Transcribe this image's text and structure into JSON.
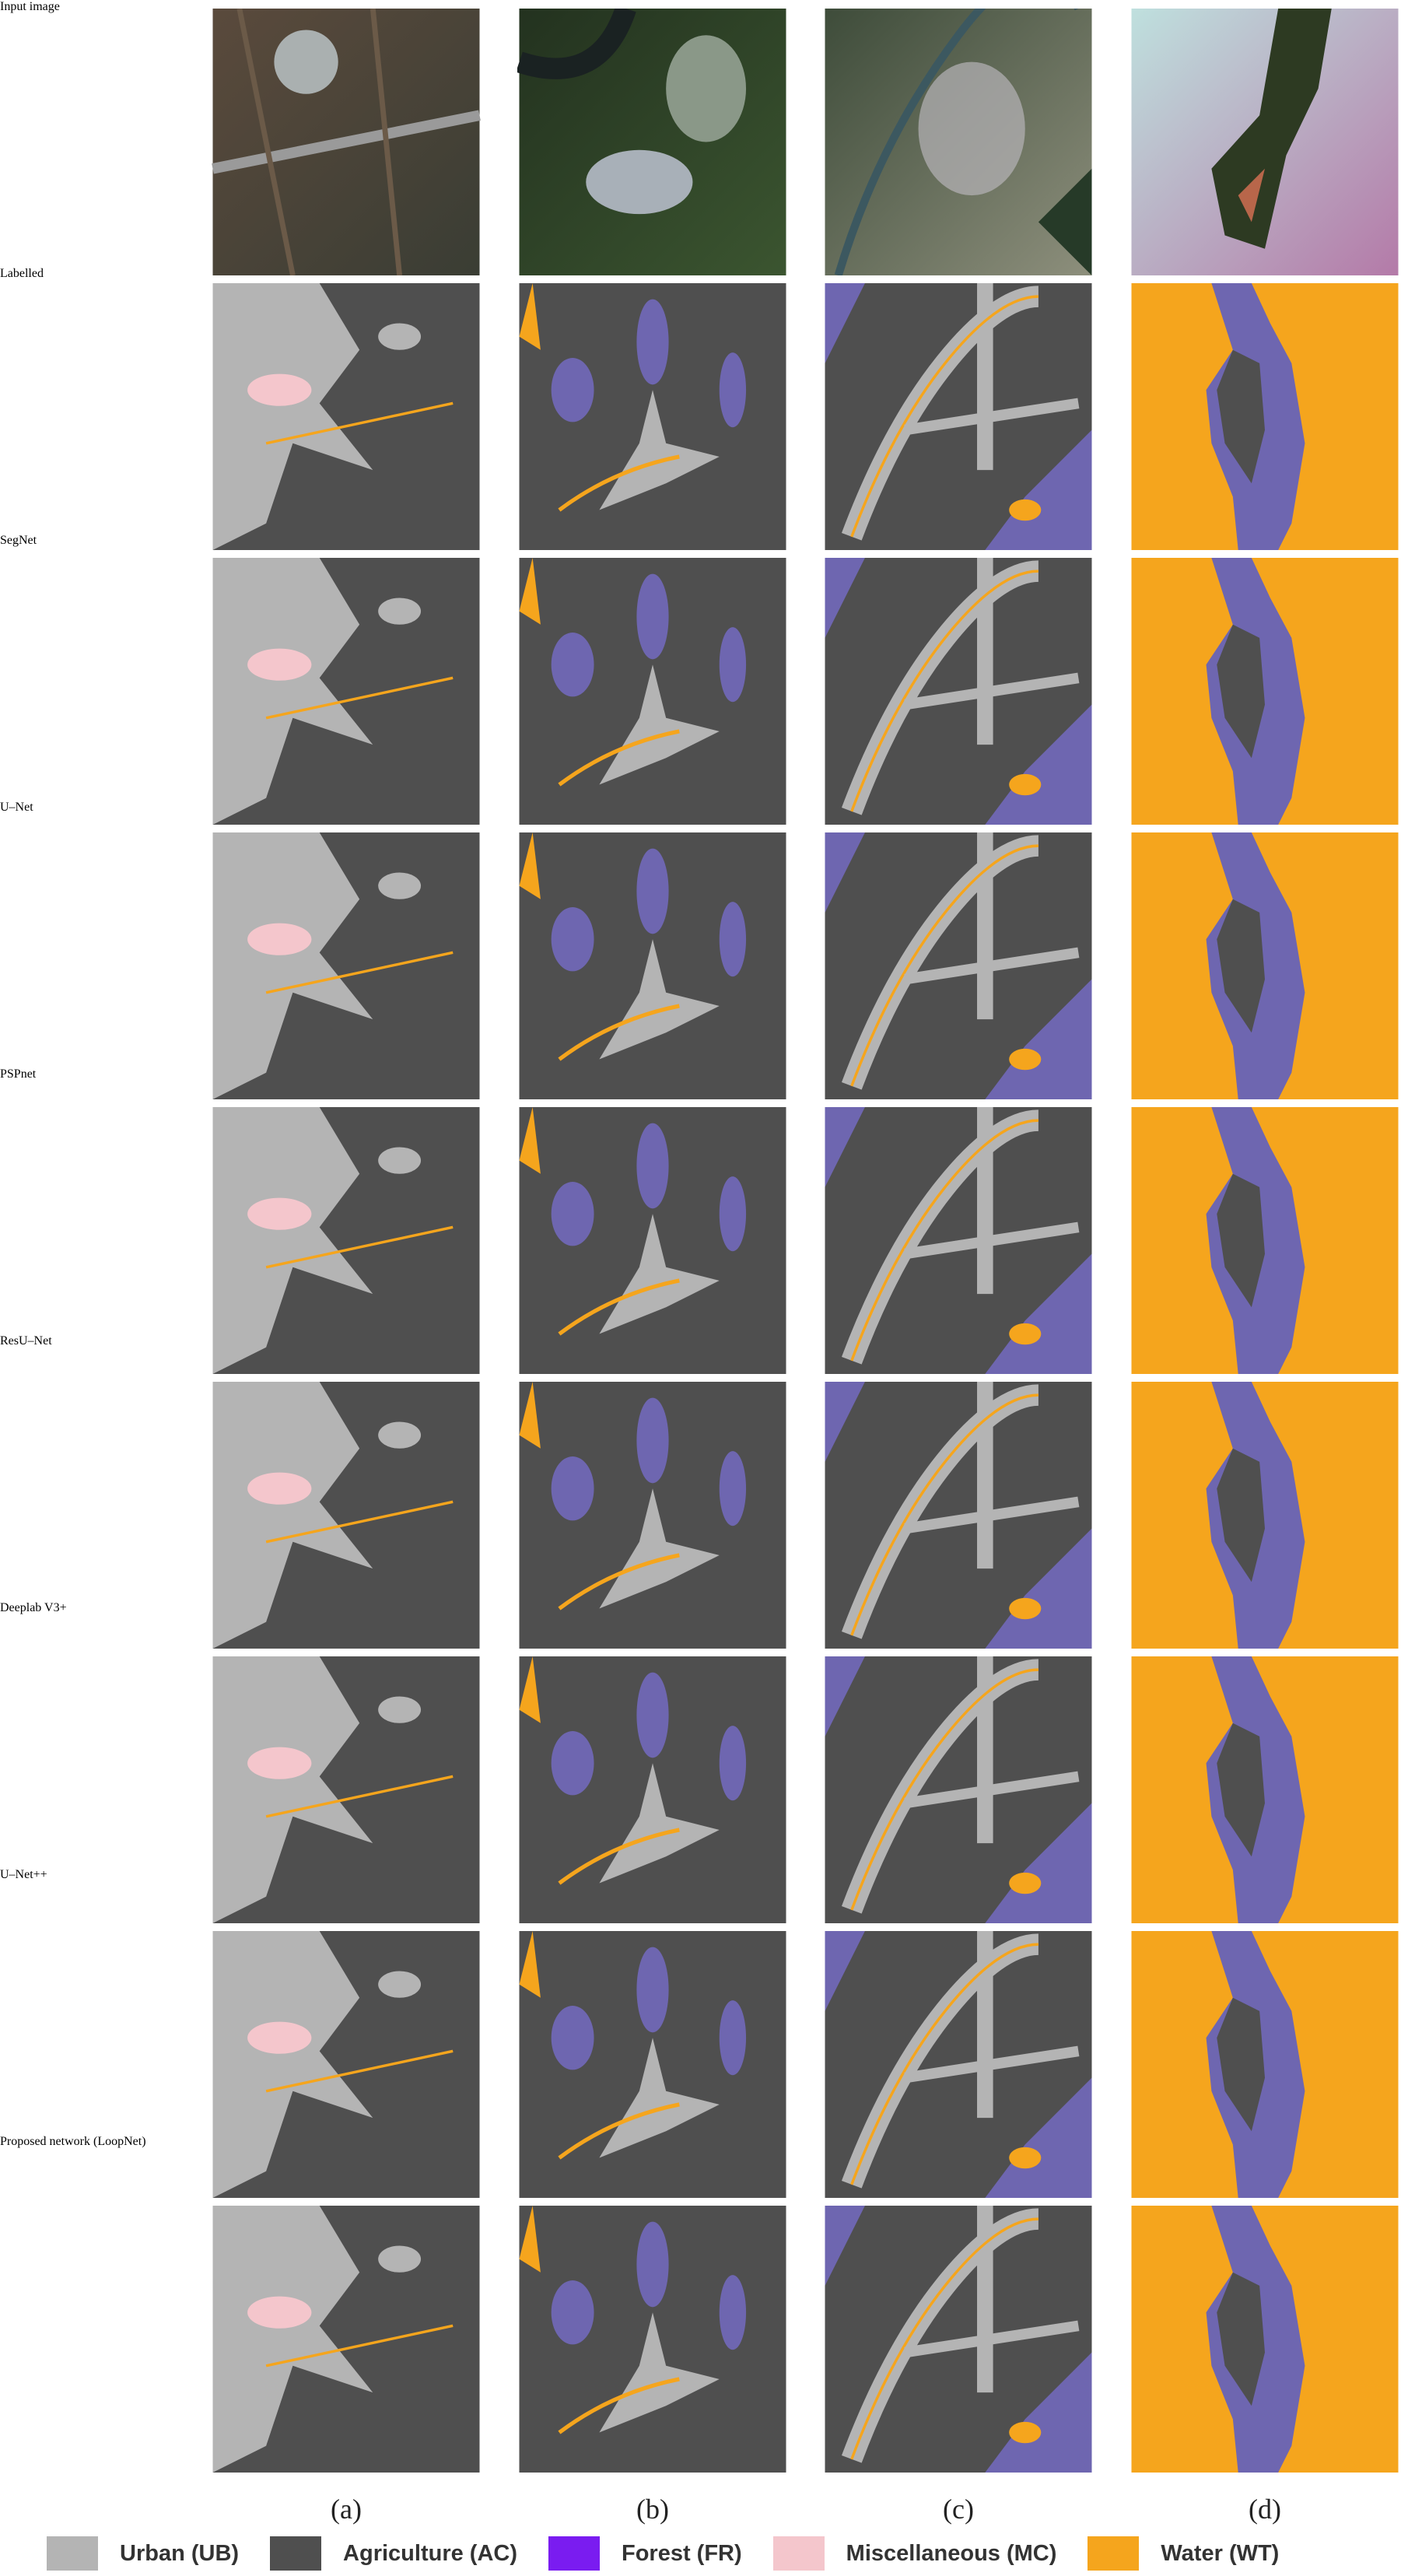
{
  "figure": {
    "rows": [
      "Input image",
      "Labelled",
      "SegNet",
      "U–Net",
      "PSPnet",
      "ResU–Net",
      "Deeplab V3+",
      "U–Net++",
      "Proposed network (LoopNet)"
    ],
    "columns": [
      "(a)",
      "(b)",
      "(c)",
      "(d)"
    ],
    "legend": [
      {
        "label": "Urban (UB)",
        "color": "#b4b4b4"
      },
      {
        "label": "Agriculture (AC)",
        "color": "#4f4f4f"
      },
      {
        "label": "Forest (FR)",
        "color": "#7a1cf0"
      },
      {
        "label": "Miscellaneous (MC)",
        "color": "#f4c6cc"
      },
      {
        "label": "Water (WT)",
        "color": "#f5a51d"
      }
    ]
  }
}
